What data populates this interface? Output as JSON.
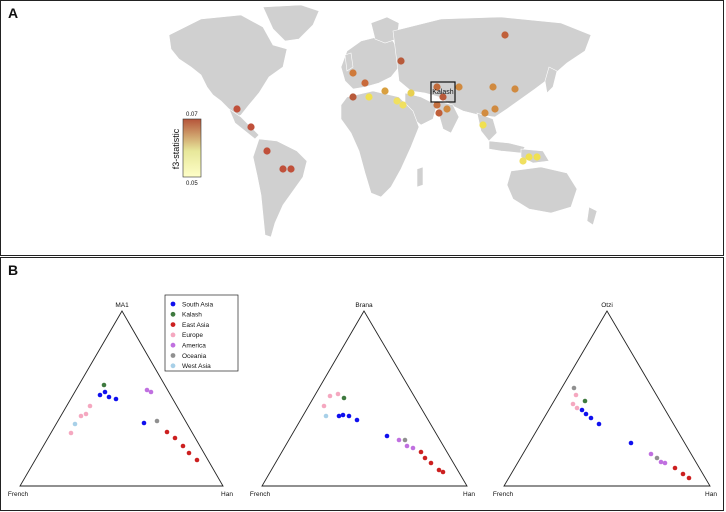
{
  "panel_a": {
    "label": "A",
    "legend": {
      "title": "f3-statistic",
      "max_label": "0.07",
      "min_label": "0.05",
      "colors": [
        "#b5543a",
        "#e7e79a",
        "#ffffc8"
      ]
    },
    "highlight_label": "Kalash",
    "map_color": "#d0d0d0"
  },
  "panel_b": {
    "label": "B",
    "legend": [
      {
        "label": "South Asia",
        "color": "#1010ee"
      },
      {
        "label": "Kalash",
        "color": "#3f7a3f"
      },
      {
        "label": "East Asia",
        "color": "#cc2020"
      },
      {
        "label": "Europe",
        "color": "#f5a8c0"
      },
      {
        "label": "America",
        "color": "#c070e0"
      },
      {
        "label": "Oceania",
        "color": "#909090"
      },
      {
        "label": "West Asia",
        "color": "#a8d0e8"
      }
    ],
    "triangles": [
      {
        "top_label": "MA1",
        "left_label": "French",
        "right_label": "Han"
      },
      {
        "top_label": "Brana",
        "left_label": "French",
        "right_label": "Han"
      },
      {
        "top_label": "Otzi",
        "left_label": "French",
        "right_label": "Han"
      }
    ]
  }
}
